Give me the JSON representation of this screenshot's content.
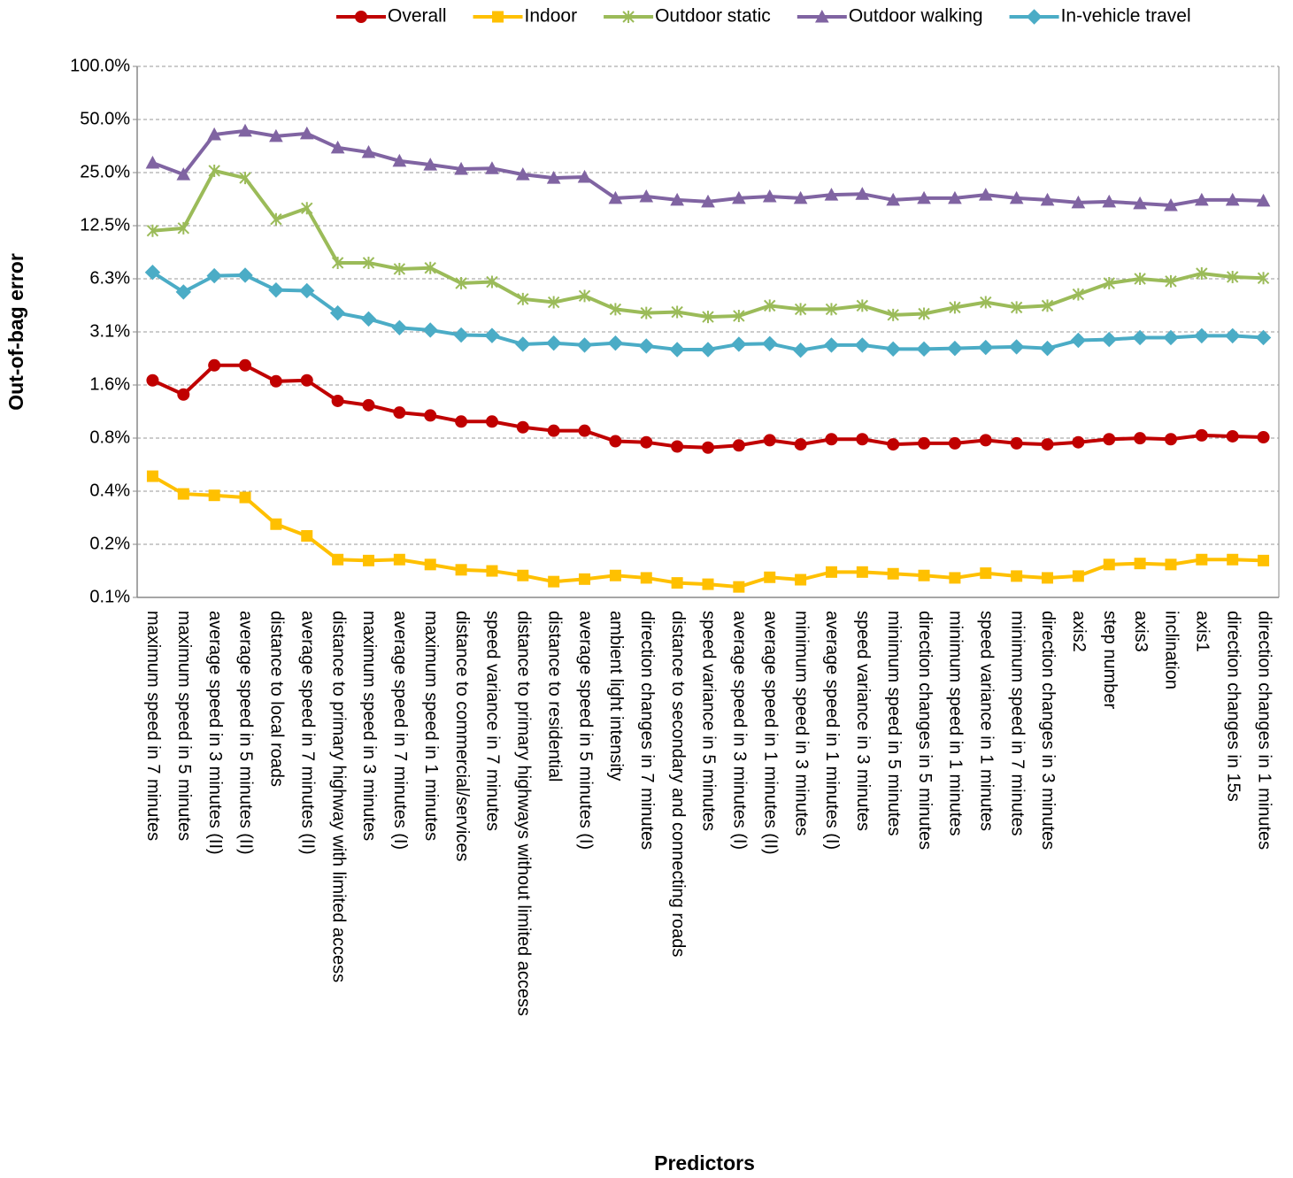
{
  "chart_data": {
    "type": "line",
    "y_label": "Out-of-bag error",
    "x_label": "Predictors",
    "yscale": "log",
    "grid": true,
    "legend": "top",
    "ylim": [
      0.09765625,
      100
    ],
    "yticks": [
      {
        "value": 0.09765625,
        "label": "0.1%"
      },
      {
        "value": 0.1953125,
        "label": "0.2%"
      },
      {
        "value": 0.390625,
        "label": "0.4%"
      },
      {
        "value": 0.78125,
        "label": "0.8%"
      },
      {
        "value": 1.5625,
        "label": "1.6%"
      },
      {
        "value": 3.125,
        "label": "3.1%"
      },
      {
        "value": 6.25,
        "label": "6.3%"
      },
      {
        "value": 12.5,
        "label": "12.5%"
      },
      {
        "value": 25,
        "label": "25.0%"
      },
      {
        "value": 50,
        "label": "50.0%"
      },
      {
        "value": 100,
        "label": "100.0%"
      }
    ],
    "categories": [
      "maximum speed in 7 minutes",
      "maximum speed in 5 minutes",
      "average speed in 3 minutes (II)",
      "average speed in 5 minutes (II)",
      "distance to local roads",
      "average speed in 7 minutes (II)",
      "distance to primary highway with limited access",
      "maximum speed in 3 minutes",
      "average speed in 7 minutes (I)",
      "maximum speed in 1 minutes",
      "distance to commercial/services",
      "speed variance in 7 minutes",
      "distance to primary highways without limited access",
      "distance to residential",
      "average speed in 5 minutes (I)",
      "ambient light intensity",
      "direction changes in 7 minutes",
      "distance to secondary and connecting roads",
      "speed variance in 5 minutes",
      "average speed in 3 minutes (I)",
      "average speed in 1 minutes (II)",
      "minimum speed in 3 minutes",
      "average speed in 1 minutes (I)",
      "speed variance in 3 minutes",
      "minimum speed in 5 minutes",
      "direction changes in 5 minutes",
      "minimum speed in 1 minutes",
      "speed variance in 1 minutes",
      "minimum speed in 7 minutes",
      "direction changes in 3 minutes",
      "axis2",
      "step number",
      "axis3",
      "inclination",
      "axis1",
      "direction changes in 15s",
      "direction changes in 1 minutes"
    ],
    "series": [
      {
        "name": "Overall",
        "color": "#c00000",
        "marker": "circle",
        "values": [
          1.66,
          1.38,
          2.02,
          2.02,
          1.64,
          1.66,
          1.27,
          1.2,
          1.09,
          1.05,
          0.97,
          0.97,
          0.9,
          0.86,
          0.86,
          0.75,
          0.74,
          0.7,
          0.69,
          0.71,
          0.76,
          0.72,
          0.77,
          0.77,
          0.72,
          0.73,
          0.73,
          0.76,
          0.73,
          0.72,
          0.74,
          0.77,
          0.78,
          0.77,
          0.81,
          0.8,
          0.79
        ]
      },
      {
        "name": "Indoor",
        "color": "#ffc000",
        "marker": "square",
        "values": [
          0.475,
          0.377,
          0.37,
          0.36,
          0.254,
          0.218,
          0.16,
          0.158,
          0.16,
          0.15,
          0.14,
          0.138,
          0.13,
          0.12,
          0.124,
          0.13,
          0.126,
          0.118,
          0.116,
          0.112,
          0.127,
          0.123,
          0.136,
          0.136,
          0.133,
          0.13,
          0.126,
          0.134,
          0.129,
          0.126,
          0.129,
          0.15,
          0.152,
          0.15,
          0.16,
          0.16,
          0.158
        ]
      },
      {
        "name": "Outdoor static",
        "color": "#9bbb59",
        "marker": "star",
        "values": [
          11.7,
          12.1,
          25.6,
          23.3,
          13.6,
          15.7,
          7.7,
          7.7,
          7.1,
          7.2,
          5.9,
          6.0,
          4.8,
          4.6,
          5.0,
          4.2,
          4.0,
          4.05,
          3.8,
          3.85,
          4.4,
          4.2,
          4.2,
          4.4,
          3.9,
          3.96,
          4.3,
          4.6,
          4.3,
          4.4,
          5.1,
          5.9,
          6.25,
          6.05,
          6.7,
          6.4,
          6.3
        ]
      },
      {
        "name": "Outdoor walking",
        "color": "#8064a2",
        "marker": "triangle",
        "values": [
          28.4,
          24.4,
          41.1,
          43.1,
          40.2,
          41.6,
          34.6,
          32.6,
          29.1,
          27.7,
          26.2,
          26.4,
          24.4,
          23.3,
          23.6,
          17.9,
          18.3,
          17.5,
          17.1,
          17.9,
          18.3,
          17.9,
          18.7,
          18.9,
          17.5,
          17.9,
          17.9,
          18.7,
          17.9,
          17.5,
          16.9,
          17.1,
          16.7,
          16.3,
          17.5,
          17.5,
          17.3
        ]
      },
      {
        "name": "In-vehicle travel",
        "color": "#4bacc6",
        "marker": "diamond",
        "values": [
          6.8,
          5.26,
          6.5,
          6.55,
          5.4,
          5.35,
          4.0,
          3.7,
          3.3,
          3.2,
          3.0,
          2.98,
          2.66,
          2.7,
          2.63,
          2.7,
          2.6,
          2.48,
          2.48,
          2.66,
          2.68,
          2.46,
          2.63,
          2.63,
          2.5,
          2.5,
          2.52,
          2.55,
          2.57,
          2.52,
          2.8,
          2.83,
          2.9,
          2.9,
          2.97,
          2.97,
          2.9
        ]
      }
    ]
  }
}
